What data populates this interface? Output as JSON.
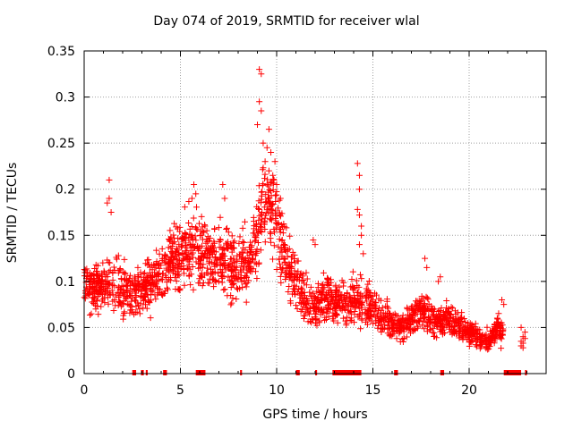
{
  "chart_data": {
    "type": "scatter",
    "title": "Day 074 of 2019, SRMTID for receiver wlal",
    "xlabel": "GPS time / hours",
    "ylabel": "SRMTID / TECUs",
    "xlim": [
      0,
      24
    ],
    "ylim": [
      0,
      0.35
    ],
    "xticks": [
      "0",
      "5",
      "10",
      "15",
      "20"
    ],
    "xtick_values": [
      0,
      5,
      10,
      15,
      20
    ],
    "yticks": [
      "0",
      "0.05",
      "0.1",
      "0.15",
      "0.2",
      "0.25",
      "0.3",
      "0.35"
    ],
    "ytick_values": [
      0,
      0.05,
      0.1,
      0.15,
      0.2,
      0.25,
      0.3,
      0.35
    ],
    "grid": true,
    "marker": "+",
    "color": "#ff0000",
    "trend": [
      [
        0.0,
        0.1
      ],
      [
        0.5,
        0.09
      ],
      [
        1.0,
        0.095
      ],
      [
        1.5,
        0.1
      ],
      [
        2.0,
        0.09
      ],
      [
        2.5,
        0.085
      ],
      [
        3.0,
        0.09
      ],
      [
        3.5,
        0.1
      ],
      [
        4.0,
        0.11
      ],
      [
        4.5,
        0.12
      ],
      [
        5.0,
        0.13
      ],
      [
        5.5,
        0.14
      ],
      [
        6.0,
        0.135
      ],
      [
        6.5,
        0.125
      ],
      [
        7.0,
        0.125
      ],
      [
        7.5,
        0.12
      ],
      [
        8.0,
        0.115
      ],
      [
        8.5,
        0.12
      ],
      [
        9.0,
        0.15
      ],
      [
        9.3,
        0.19
      ],
      [
        9.7,
        0.19
      ],
      [
        10.0,
        0.165
      ],
      [
        10.5,
        0.12
      ],
      [
        11.0,
        0.1
      ],
      [
        11.5,
        0.08
      ],
      [
        12.0,
        0.07
      ],
      [
        12.5,
        0.085
      ],
      [
        13.0,
        0.08
      ],
      [
        13.5,
        0.075
      ],
      [
        14.0,
        0.08
      ],
      [
        14.5,
        0.08
      ],
      [
        15.0,
        0.07
      ],
      [
        15.5,
        0.06
      ],
      [
        16.0,
        0.055
      ],
      [
        16.5,
        0.05
      ],
      [
        17.0,
        0.06
      ],
      [
        17.5,
        0.07
      ],
      [
        18.0,
        0.06
      ],
      [
        18.5,
        0.055
      ],
      [
        19.0,
        0.06
      ],
      [
        19.5,
        0.05
      ],
      [
        20.0,
        0.045
      ],
      [
        20.5,
        0.04
      ],
      [
        21.0,
        0.035
      ],
      [
        21.5,
        0.05
      ],
      [
        21.8,
        0.045
      ]
    ],
    "data_range": [
      0.0,
      21.8
    ],
    "late_points": [
      [
        22.7,
        0.03
      ],
      [
        22.7,
        0.035
      ],
      [
        22.8,
        0.04
      ],
      [
        22.8,
        0.033
      ],
      [
        22.9,
        0.045
      ],
      [
        22.9,
        0.038
      ],
      [
        22.7,
        0.05
      ],
      [
        22.8,
        0.028
      ]
    ],
    "spikes": [
      [
        1.3,
        0.21
      ],
      [
        1.3,
        0.19
      ],
      [
        1.2,
        0.185
      ],
      [
        1.4,
        0.175
      ],
      [
        5.7,
        0.205
      ],
      [
        5.8,
        0.195
      ],
      [
        5.6,
        0.19
      ],
      [
        7.2,
        0.205
      ],
      [
        7.3,
        0.19
      ],
      [
        9.1,
        0.33
      ],
      [
        9.2,
        0.325
      ],
      [
        9.1,
        0.295
      ],
      [
        9.2,
        0.285
      ],
      [
        9.0,
        0.27
      ],
      [
        9.3,
        0.25
      ],
      [
        9.5,
        0.245
      ],
      [
        9.6,
        0.265
      ],
      [
        9.7,
        0.24
      ],
      [
        9.4,
        0.23
      ],
      [
        9.6,
        0.22
      ],
      [
        9.8,
        0.215
      ],
      [
        9.5,
        0.205
      ],
      [
        10.0,
        0.205
      ],
      [
        10.2,
        0.19
      ],
      [
        11.9,
        0.145
      ],
      [
        12.0,
        0.14
      ],
      [
        14.2,
        0.228
      ],
      [
        14.3,
        0.215
      ],
      [
        14.3,
        0.2
      ],
      [
        14.2,
        0.178
      ],
      [
        14.3,
        0.172
      ],
      [
        14.4,
        0.16
      ],
      [
        14.4,
        0.15
      ],
      [
        14.3,
        0.14
      ],
      [
        14.5,
        0.13
      ],
      [
        17.7,
        0.125
      ],
      [
        17.8,
        0.115
      ],
      [
        18.5,
        0.105
      ],
      [
        18.4,
        0.1
      ],
      [
        21.7,
        0.08
      ],
      [
        21.8,
        0.075
      ]
    ],
    "scatter_density": 2200,
    "outage_marks": [
      [
        2.5,
        2.7
      ],
      [
        2.95,
        3.1
      ],
      [
        3.2,
        3.3
      ],
      [
        4.1,
        4.3
      ],
      [
        5.8,
        6.3
      ],
      [
        8.1,
        8.2
      ],
      [
        11.0,
        11.2
      ],
      [
        12.0,
        12.1
      ],
      [
        12.9,
        14.4
      ],
      [
        16.1,
        16.3
      ],
      [
        18.5,
        18.7
      ],
      [
        21.8,
        22.7
      ],
      [
        22.9,
        23.0
      ]
    ]
  }
}
